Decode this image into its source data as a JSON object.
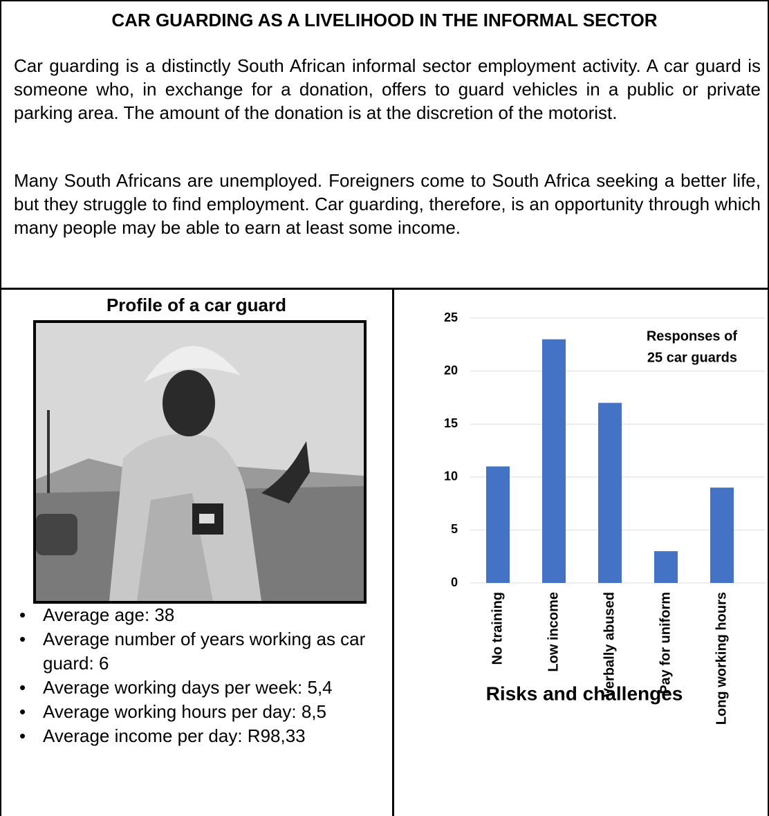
{
  "title": "CAR GUARDING AS A LIVELIHOOD IN THE INFORMAL SECTOR",
  "paragraphs": [
    "Car guarding is a distinctly South African informal sector employment activity. A car guard is someone who, in exchange for a donation, offers to guard vehicles in a public or private parking area. The amount of the donation is at the discretion of the motorist.",
    "Many South Africans are unemployed. Foreigners come to South Africa seeking a better life, but they struggle to find employment. Car guarding, therefore, is an opportunity through which many people may be able to earn at least some income."
  ],
  "profile": {
    "heading": "Profile of a car guard",
    "bullets": [
      "Average age: 38",
      "Average number of years working as car guard: 6",
      "Average working days per week: 5,4",
      "Average working hours per day: 8,5",
      "Average income per day: R98,33"
    ]
  },
  "chart_data": {
    "type": "bar",
    "title": "Risks and challenges",
    "annotation": [
      "Responses of",
      "25 car guards"
    ],
    "categories": [
      "No training",
      "Low income",
      "Verbally abused",
      "Pay for uniform",
      "Long working hours"
    ],
    "values": [
      11,
      23,
      17,
      3,
      9
    ],
    "color": "#4472c4",
    "ylim": [
      0,
      25
    ],
    "yticks": [
      0,
      5,
      10,
      15,
      20,
      25
    ],
    "grid": true
  }
}
